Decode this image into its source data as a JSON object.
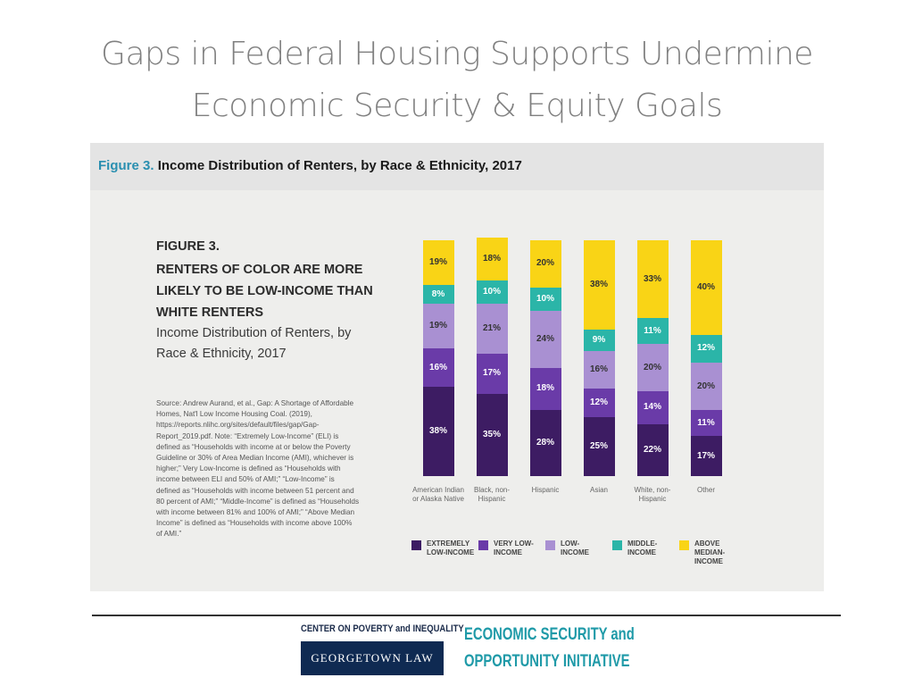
{
  "title_lines": [
    "Gaps in Federal Housing Supports Undermine",
    "Economic Security & Equity Goals"
  ],
  "caption": {
    "label": "Figure 3.",
    "text": "Income Distribution of Renters, by Race & Ethnicity, 2017"
  },
  "figure": {
    "label": "FIGURE 3.",
    "heading": "RENTERS OF COLOR ARE MORE LIKELY TO BE LOW-INCOME THAN WHITE RENTERS",
    "subtitle": "Income Distribution of Renters, by Race & Ethnicity, 2017",
    "source": "Source: Andrew Aurand, et al., Gap: A Shortage of Affordable Homes, Nat'l Low Income Housing Coal. (2019), https://reports.nlihc.org/sites/default/files/gap/Gap-Report_2019.pdf. Note: “Extremely Low-Income” (ELI) is defined as “Households with income at or below the Poverty Guideline or 30% of Area Median Income (AMI), whichever is higher;” Very Low-Income is defined as “Households with income between ELI and 50% of AMI;” “Low-Income” is defined as “Households with income between 51 percent and 80 percent of AMI;” “Middle-Income” is defined as “Households with income between 81% and 100% of AMI;” “Above Median Income” is defined as “Households with income above 100% of AMI.”"
  },
  "chart_data": {
    "type": "stacked_bar",
    "categories": [
      "American Indian or Alaska Native",
      "Black, non-Hispanic",
      "Hispanic",
      "Asian",
      "White, non-Hispanic",
      "Other"
    ],
    "ylim": [
      0,
      100
    ],
    "series": [
      {
        "name": "EXTREMELY LOW-INCOME",
        "color": "#3d1c63",
        "values": [
          38,
          35,
          28,
          25,
          22,
          17
        ],
        "value_labels": [
          "38%",
          "35%",
          "28%",
          "25%",
          "22%",
          "17%"
        ]
      },
      {
        "name": "VERY LOW-INCOME",
        "color": "#6a3ba8",
        "values": [
          16,
          17,
          18,
          12,
          14,
          11
        ],
        "value_labels": [
          "16%",
          "17%",
          "18%",
          "12%",
          "14%",
          "11%"
        ]
      },
      {
        "name": "LOW-INCOME",
        "color": "#a990d2",
        "values": [
          19,
          21,
          24,
          16,
          20,
          20
        ],
        "value_labels": [
          "19%",
          "21%",
          "24%",
          "16%",
          "20%",
          "20%"
        ]
      },
      {
        "name": "MIDDLE-INCOME",
        "color": "#2bb5a8",
        "values": [
          8,
          10,
          10,
          9,
          11,
          12
        ],
        "value_labels": [
          "8%",
          "10%",
          "10%",
          "9%",
          "11%",
          "12%"
        ]
      },
      {
        "name": "ABOVE MEDIAN-INCOME",
        "color": "#f9d416",
        "values": [
          19,
          18,
          20,
          38,
          33,
          40
        ],
        "value_labels": [
          "19%",
          "18%",
          "20%",
          "38%",
          "33%",
          "40%"
        ]
      }
    ]
  },
  "footer": {
    "center": "CENTER ON POVERTY and INEQUALITY",
    "school": "GEORGETOWN LAW",
    "initiative_lines": [
      "ECONOMIC SECURITY and",
      "OPPORTUNITY INITIATIVE"
    ]
  }
}
